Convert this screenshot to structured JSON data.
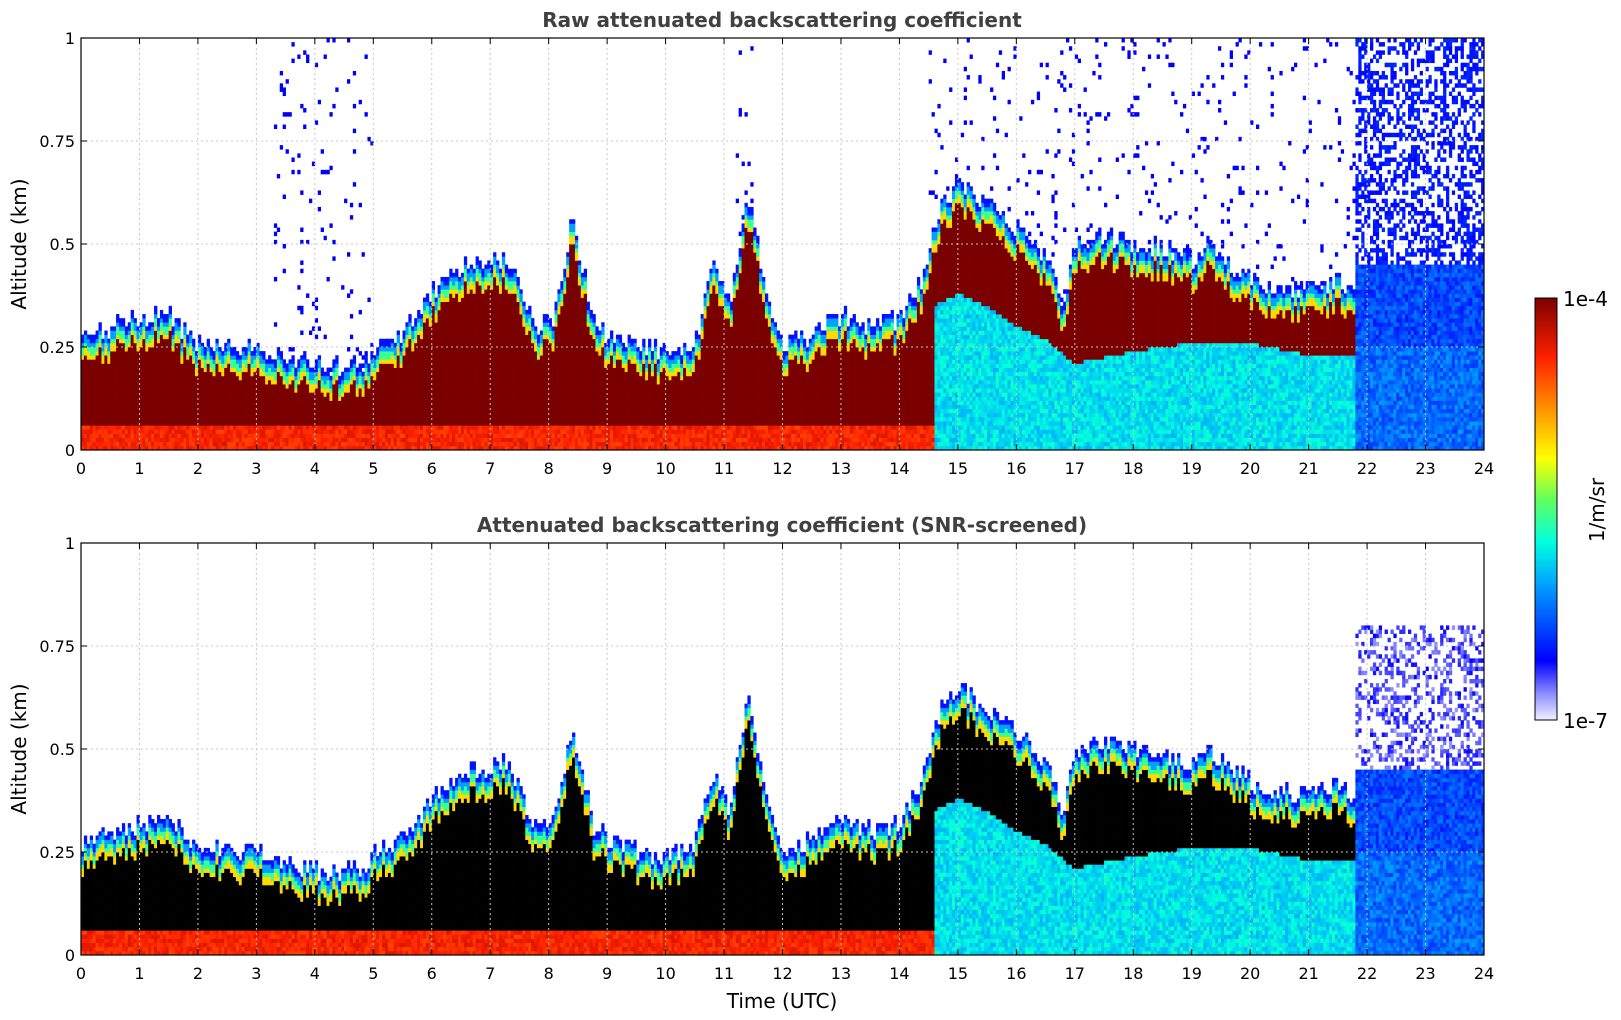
{
  "chart_data": [
    {
      "type": "heatmap",
      "title": "Raw attenuated backscattering coefficient",
      "xlabel": "",
      "ylabel": "Altitude (km)",
      "xlim": [
        0,
        24
      ],
      "ylim": [
        0,
        1
      ],
      "xticks": [
        "0",
        "1",
        "2",
        "3",
        "4",
        "5",
        "6",
        "7",
        "8",
        "9",
        "10",
        "11",
        "12",
        "13",
        "14",
        "15",
        "16",
        "17",
        "18",
        "19",
        "20",
        "21",
        "22",
        "23",
        "24"
      ],
      "yticks": [
        "0",
        "0.25",
        "0.5",
        "0.75",
        "1"
      ],
      "grid": true,
      "layer_top_km": [
        [
          0,
          0.27
        ],
        [
          0.5,
          0.3
        ],
        [
          1,
          0.32
        ],
        [
          1.5,
          0.33
        ],
        [
          2,
          0.26
        ],
        [
          2.5,
          0.26
        ],
        [
          3,
          0.25
        ],
        [
          3.5,
          0.22
        ],
        [
          4,
          0.21
        ],
        [
          4.5,
          0.2
        ],
        [
          4.9,
          0.22
        ],
        [
          5,
          0.24
        ],
        [
          5.5,
          0.28
        ],
        [
          6,
          0.38
        ],
        [
          6.5,
          0.44
        ],
        [
          7,
          0.46
        ],
        [
          7.3,
          0.47
        ],
        [
          7.8,
          0.3
        ],
        [
          8.1,
          0.32
        ],
        [
          8.4,
          0.56
        ],
        [
          8.8,
          0.3
        ],
        [
          9.2,
          0.27
        ],
        [
          10,
          0.24
        ],
        [
          10.5,
          0.26
        ],
        [
          10.8,
          0.45
        ],
        [
          11.1,
          0.35
        ],
        [
          11.4,
          0.63
        ],
        [
          11.7,
          0.4
        ],
        [
          12,
          0.26
        ],
        [
          12.5,
          0.28
        ],
        [
          13,
          0.33
        ],
        [
          13.5,
          0.3
        ],
        [
          14,
          0.32
        ],
        [
          14.4,
          0.42
        ],
        [
          14.7,
          0.6
        ],
        [
          15,
          0.65
        ],
        [
          15.5,
          0.6
        ],
        [
          16,
          0.54
        ],
        [
          16.5,
          0.47
        ],
        [
          16.8,
          0.36
        ],
        [
          17,
          0.5
        ],
        [
          17.5,
          0.52
        ],
        [
          18,
          0.5
        ],
        [
          18.5,
          0.49
        ],
        [
          19,
          0.46
        ],
        [
          19.3,
          0.5
        ],
        [
          19.8,
          0.44
        ],
        [
          20.2,
          0.4
        ],
        [
          21,
          0.39
        ],
        [
          21.5,
          0.41
        ],
        [
          21.8,
          0.38
        ]
      ],
      "layer_bottom_km": [
        [
          14.6,
          0.35
        ],
        [
          15,
          0.38
        ],
        [
          15.5,
          0.35
        ],
        [
          16,
          0.3
        ],
        [
          16.5,
          0.27
        ],
        [
          17,
          0.21
        ],
        [
          18,
          0.24
        ],
        [
          19,
          0.26
        ],
        [
          20,
          0.26
        ],
        [
          21,
          0.23
        ],
        [
          21.8,
          0.23
        ]
      ]
    },
    {
      "type": "heatmap",
      "title": "Attenuated backscattering coefficient (SNR-screened)",
      "xlabel": "Time (UTC)",
      "ylabel": "Altitude (km)",
      "xlim": [
        0,
        24
      ],
      "ylim": [
        0,
        1
      ],
      "xticks": [
        "0",
        "1",
        "2",
        "3",
        "4",
        "5",
        "6",
        "7",
        "8",
        "9",
        "10",
        "11",
        "12",
        "13",
        "14",
        "15",
        "16",
        "17",
        "18",
        "19",
        "20",
        "21",
        "22",
        "23",
        "24"
      ],
      "yticks": [
        "0",
        "0.25",
        "0.5",
        "0.75",
        "1"
      ],
      "grid": true
    }
  ],
  "colorbar": {
    "max_label": "1e-4",
    "min_label": "1e-7",
    "unit_label": "1/m/sr",
    "scale": "log",
    "colormap": [
      "#e6e6fa",
      "#0000ff",
      "#00b4ff",
      "#00ffd0",
      "#80ff40",
      "#ffff00",
      "#ff8000",
      "#ff2000",
      "#7a0000"
    ]
  },
  "colors": {
    "background": "#ffffff",
    "title": "#404040",
    "grid": "#c8c8c8",
    "screened_core": "#000000"
  }
}
